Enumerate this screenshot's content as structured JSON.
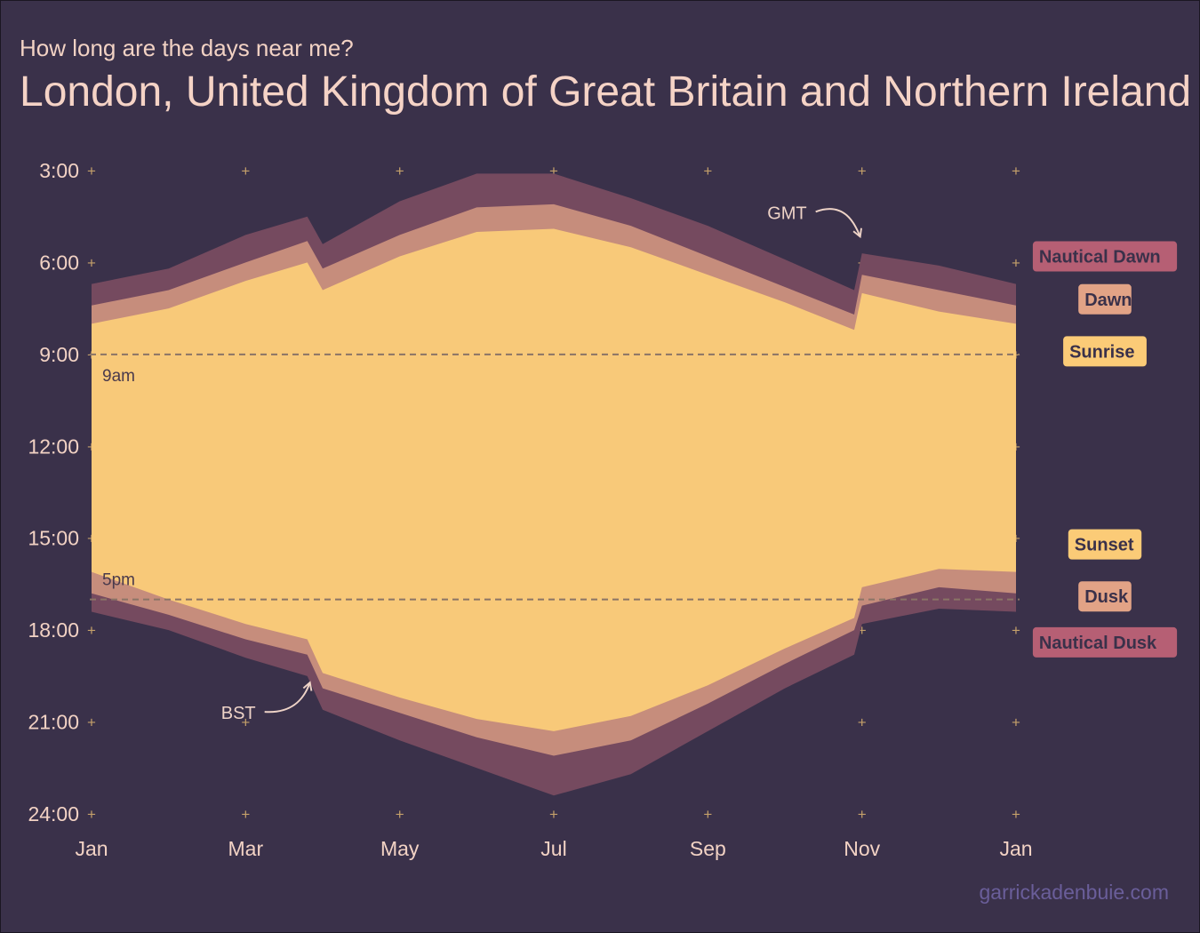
{
  "page": {
    "subtitle": "How long are the days near me?",
    "title": "London, United Kingdom of Great Britain and Northern Ireland",
    "credit": "garrickadenbuie.com"
  },
  "colors": {
    "background": "#3a314a",
    "nautical": "#754a5f",
    "civil": "#c68d7c",
    "daylight": "#f8c979",
    "reference_line": "#8a7466",
    "grid_plus": "#c4a06a",
    "legend_nautical": "#b65f74",
    "legend_dawn_dusk": "#e2a386",
    "legend_sun": "#fbcb77"
  },
  "chart_data": {
    "type": "area",
    "x_unit": "month",
    "y_unit": "hour of day",
    "xlim": [
      1,
      13
    ],
    "ylim": [
      3,
      24
    ],
    "y_reversed": true,
    "x_ticks": [
      {
        "x": 1,
        "label": "Jan"
      },
      {
        "x": 3,
        "label": "Mar"
      },
      {
        "x": 5,
        "label": "May"
      },
      {
        "x": 7,
        "label": "Jul"
      },
      {
        "x": 9,
        "label": "Sep"
      },
      {
        "x": 11,
        "label": "Nov"
      },
      {
        "x": 13,
        "label": "Jan"
      }
    ],
    "y_ticks": [
      {
        "y": 3,
        "label": "3:00"
      },
      {
        "y": 6,
        "label": "6:00"
      },
      {
        "y": 9,
        "label": "9:00"
      },
      {
        "y": 12,
        "label": "12:00"
      },
      {
        "y": 15,
        "label": "15:00"
      },
      {
        "y": 18,
        "label": "18:00"
      },
      {
        "y": 21,
        "label": "21:00"
      },
      {
        "y": 24,
        "label": "24:00"
      }
    ],
    "grid": "plus markers",
    "x": [
      1.0,
      2.0,
      3.0,
      3.8,
      4.0,
      5.0,
      6.0,
      7.0,
      8.0,
      9.0,
      10.0,
      10.9,
      11.0,
      12.0,
      13.0
    ],
    "series": [
      {
        "name": "Nautical Dawn",
        "role": "upper",
        "values": [
          6.7,
          6.2,
          5.1,
          4.5,
          5.4,
          4.0,
          3.1,
          3.1,
          3.9,
          4.8,
          5.9,
          6.9,
          5.7,
          6.1,
          6.7
        ]
      },
      {
        "name": "Dawn",
        "role": "upper",
        "values": [
          7.4,
          6.9,
          6.0,
          5.3,
          6.2,
          5.1,
          4.2,
          4.1,
          4.8,
          5.8,
          6.8,
          7.7,
          6.4,
          6.9,
          7.4
        ]
      },
      {
        "name": "Sunrise",
        "role": "upper",
        "values": [
          8.0,
          7.5,
          6.6,
          6.0,
          6.9,
          5.8,
          5.0,
          4.9,
          5.5,
          6.4,
          7.3,
          8.2,
          7.0,
          7.6,
          8.0
        ]
      },
      {
        "name": "Sunset",
        "role": "lower",
        "values": [
          16.1,
          17.0,
          17.8,
          18.3,
          19.4,
          20.2,
          20.9,
          21.3,
          20.8,
          19.8,
          18.6,
          17.6,
          16.6,
          16.0,
          16.1
        ]
      },
      {
        "name": "Dusk",
        "role": "lower",
        "values": [
          16.8,
          17.5,
          18.3,
          18.8,
          19.9,
          20.7,
          21.5,
          22.1,
          21.6,
          20.4,
          19.1,
          18.0,
          17.2,
          16.6,
          16.8
        ]
      },
      {
        "name": "Nautical Dusk",
        "role": "lower",
        "values": [
          17.4,
          18.0,
          18.9,
          19.5,
          20.6,
          21.6,
          22.5,
          23.4,
          22.7,
          21.3,
          19.9,
          18.8,
          17.8,
          17.3,
          17.4
        ]
      }
    ],
    "reference_lines": [
      {
        "y": 9,
        "label": "9am"
      },
      {
        "y": 17,
        "label": "5pm"
      }
    ],
    "annotations": [
      {
        "text": "GMT",
        "x": 11.0,
        "y": 5.3
      },
      {
        "text": "BST",
        "x": 3.8,
        "y": 20.0
      }
    ],
    "legend": [
      {
        "label": "Nautical Dawn",
        "y": 5.8,
        "color": "#b65f74"
      },
      {
        "label": "Dawn",
        "y": 7.2,
        "color": "#e2a386"
      },
      {
        "label": "Sunrise",
        "y": 8.9,
        "color": "#fbcb77"
      },
      {
        "label": "Sunset",
        "y": 15.2,
        "color": "#fbcb77"
      },
      {
        "label": "Dusk",
        "y": 16.9,
        "color": "#e2a386"
      },
      {
        "label": "Nautical Dusk",
        "y": 18.4,
        "color": "#b65f74"
      }
    ],
    "legend_position": "right"
  }
}
